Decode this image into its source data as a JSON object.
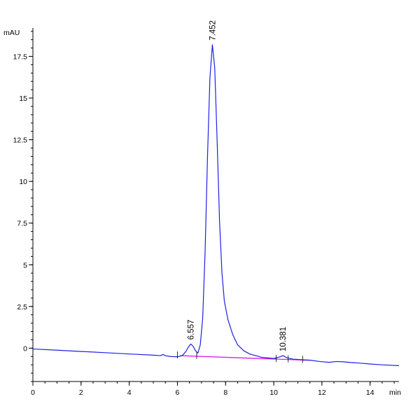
{
  "chart_data": {
    "type": "line",
    "title": "",
    "xlabel": "min",
    "ylabel": "mAU",
    "xlim": [
      0,
      15.2
    ],
    "ylim": [
      -2.0,
      19.2
    ],
    "grid": false,
    "x_ticks": [
      0,
      2,
      4,
      6,
      8,
      10,
      12,
      14
    ],
    "x_tick_labels": [
      "0",
      "2",
      "4",
      "6",
      "8",
      "10",
      "12",
      "14"
    ],
    "x_minor_step": 0.5,
    "y_ticks": [
      0,
      2.5,
      5,
      7.5,
      10,
      12.5,
      15,
      17.5
    ],
    "y_tick_labels": [
      "0",
      "2.5",
      "5",
      "7.5",
      "10",
      "12.5",
      "15",
      "17.5"
    ],
    "y_minor_step": 0.5,
    "series": [
      {
        "color": "#1f1fe6",
        "x": [
          0,
          1,
          2,
          3,
          4,
          5,
          5.3,
          5.4,
          5.5,
          5.7,
          6.0,
          6.2,
          6.35,
          6.45,
          6.557,
          6.65,
          6.75,
          6.85,
          6.95,
          7.05,
          7.15,
          7.25,
          7.35,
          7.452,
          7.55,
          7.65,
          7.75,
          7.85,
          7.95,
          8.1,
          8.3,
          8.5,
          8.75,
          9.0,
          9.5,
          10.0,
          10.2,
          10.381,
          10.55,
          10.8,
          11.2,
          11.5,
          11.9,
          12.3,
          12.6,
          12.9,
          13.2,
          13.6,
          14.0,
          14.5,
          15.2
        ],
        "y": [
          -0.05,
          -0.12,
          -0.2,
          -0.27,
          -0.35,
          -0.42,
          -0.45,
          -0.38,
          -0.45,
          -0.5,
          -0.52,
          -0.45,
          -0.2,
          0.05,
          0.25,
          0.12,
          -0.15,
          -0.3,
          0.2,
          1.8,
          5.8,
          11.5,
          16.2,
          18.2,
          16.8,
          12.4,
          7.6,
          4.5,
          2.8,
          1.7,
          0.8,
          0.2,
          -0.15,
          -0.35,
          -0.55,
          -0.62,
          -0.55,
          -0.45,
          -0.58,
          -0.66,
          -0.7,
          -0.72,
          -0.8,
          -0.85,
          -0.8,
          -0.82,
          -0.86,
          -0.9,
          -0.95,
          -1.0,
          -1.05
        ]
      },
      {
        "color": "#e619e6",
        "x": [
          6.1,
          11.5
        ],
        "y": [
          -0.45,
          -0.73
        ]
      }
    ],
    "annotations": [
      {
        "text": "6.557",
        "x": 6.557,
        "y": 0.25
      },
      {
        "text": "7.452",
        "x": 7.452,
        "y": 18.2
      },
      {
        "text": "10.381",
        "x": 10.381,
        "y": -0.45
      }
    ],
    "integration_marks_x": [
      6.0,
      6.8,
      10.1,
      10.6,
      11.2
    ]
  }
}
